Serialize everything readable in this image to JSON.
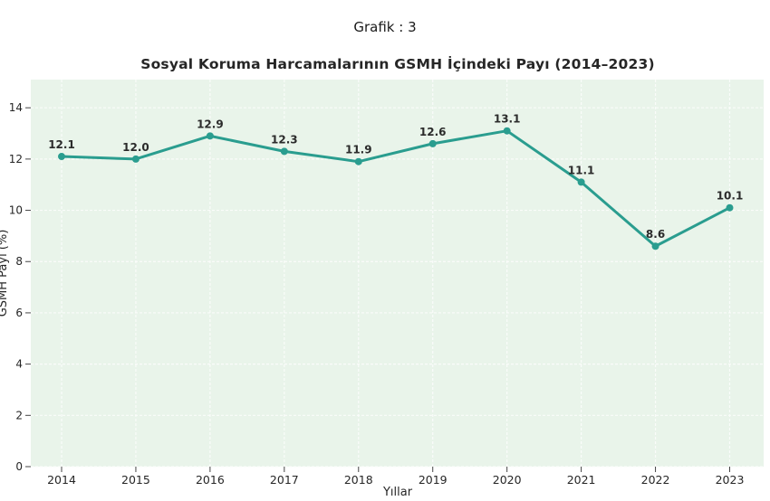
{
  "figure": {
    "title": "Grafik : 3"
  },
  "chart_data": {
    "type": "line",
    "title": "Sosyal Koruma Harcamalarının GSMH İçindeki Payı (2014–2023)",
    "xlabel": "Yıllar",
    "ylabel": "GSMH Payı (%)",
    "categories": [
      "2014",
      "2015",
      "2016",
      "2017",
      "2018",
      "2019",
      "2020",
      "2021",
      "2022",
      "2023"
    ],
    "values": [
      12.1,
      12.0,
      12.9,
      12.3,
      11.9,
      12.6,
      13.1,
      11.1,
      8.6,
      10.1
    ],
    "point_labels": [
      "12.1",
      "12.0",
      "12.9",
      "12.3",
      "11.9",
      "12.6",
      "13.1",
      "11.1",
      "8.6",
      "10.1"
    ],
    "yticks": [
      0,
      2,
      4,
      6,
      8,
      10,
      12,
      14
    ],
    "ylim": [
      0,
      15.1
    ],
    "grid": true,
    "legend": "none",
    "colors": {
      "line": "#2a9d8f",
      "marker": "#2a9d8f",
      "plot_background": "#e9f4ea",
      "gridline": "#fafcfa",
      "tick": "#444444",
      "text": "#262626"
    }
  }
}
